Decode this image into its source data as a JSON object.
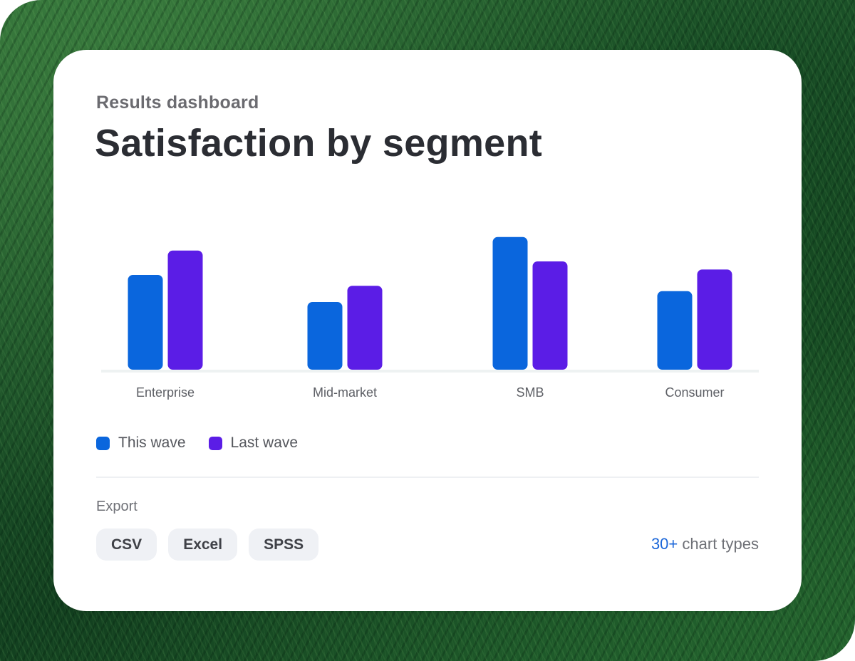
{
  "header": {
    "eyebrow": "Results dashboard",
    "title": "Satisfaction by segment"
  },
  "colors": {
    "this_wave": "#0a66dd",
    "last_wave": "#5b1de6",
    "accent": "#1a66d9"
  },
  "chart_data": {
    "type": "bar",
    "categories": [
      "Enterprise",
      "Mid-market",
      "SMB",
      "Consumer"
    ],
    "series": [
      {
        "name": "This wave",
        "values": [
          70,
          50,
          98,
          58
        ]
      },
      {
        "name": "Last wave",
        "values": [
          88,
          62,
          80,
          74
        ]
      }
    ],
    "ylim": [
      0,
      100
    ],
    "grid": false,
    "legend": "bottom-left"
  },
  "legend": {
    "items": [
      {
        "label": "This wave",
        "color": "#0a66dd"
      },
      {
        "label": "Last wave",
        "color": "#5b1de6"
      }
    ]
  },
  "export": {
    "label": "Export",
    "formats": [
      "CSV",
      "Excel",
      "SPSS"
    ]
  },
  "footer": {
    "chart_types_count": "30+",
    "chart_types_label": "chart types"
  },
  "background": {
    "icon": "grass-photo"
  }
}
